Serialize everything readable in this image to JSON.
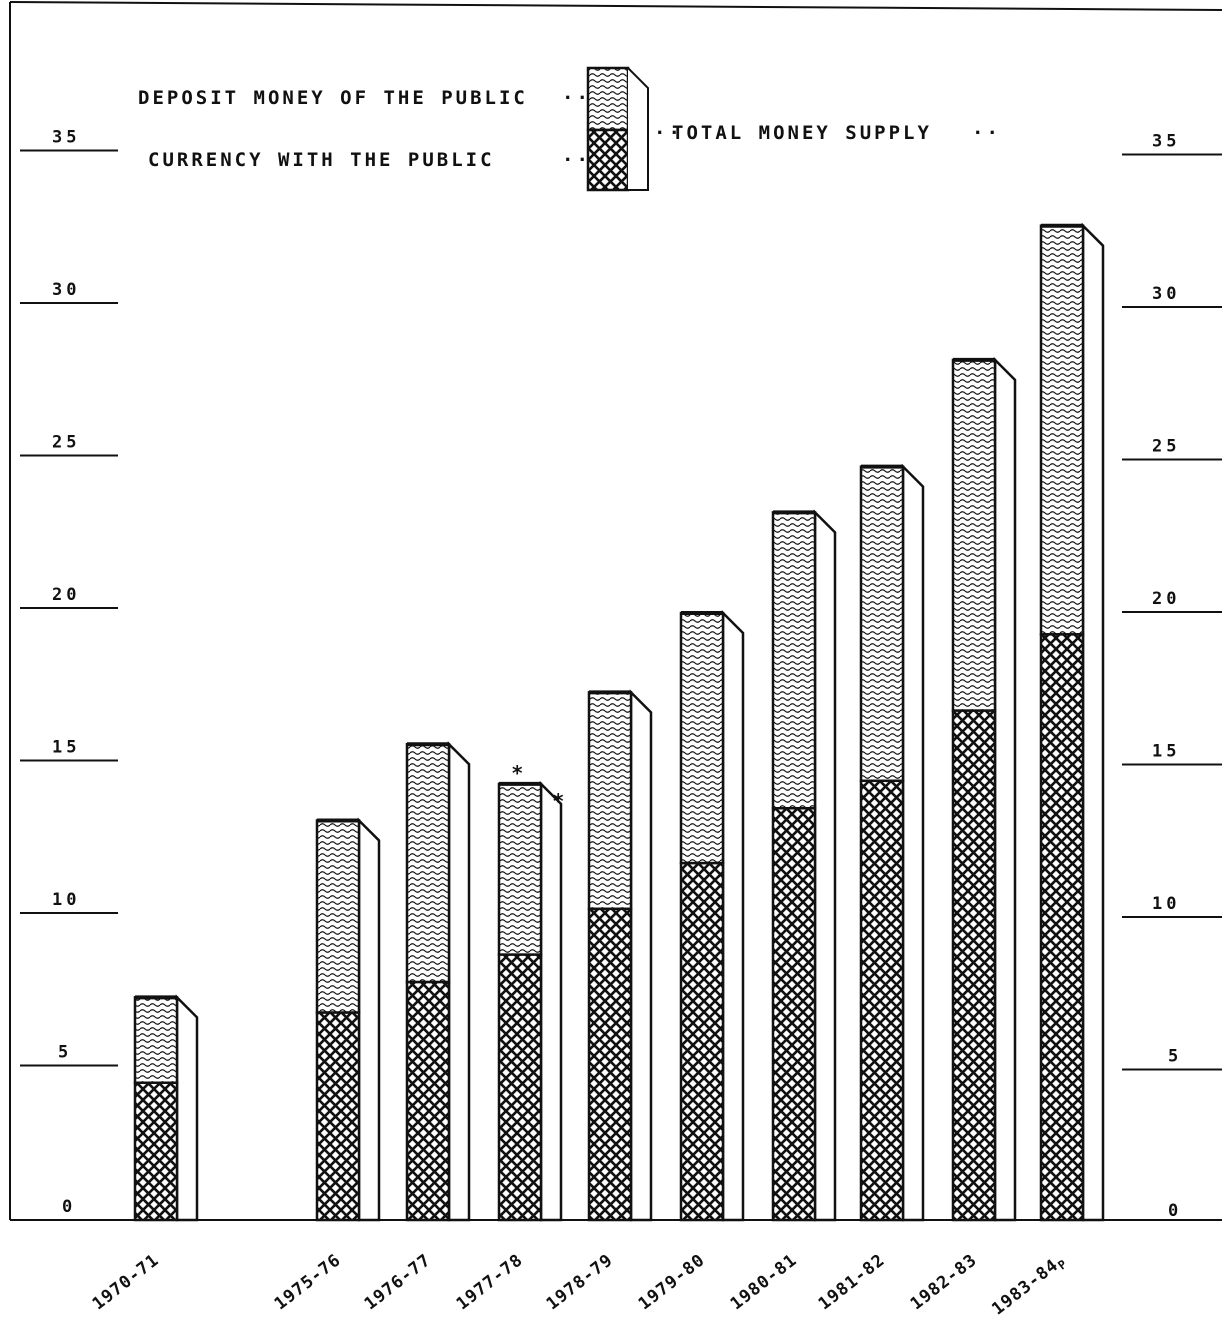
{
  "chart_data": {
    "type": "bar",
    "stacked": true,
    "title": "",
    "xlabel": "",
    "ylabel": "",
    "ylim": [
      0,
      35
    ],
    "yticks": [
      "0",
      "5",
      "10",
      "15",
      "20",
      "25",
      "30",
      "35"
    ],
    "grid": false,
    "legend_position": "top-left",
    "categories": [
      "1970-71",
      "1975-76",
      "1976-77",
      "1977-78",
      "1978-79",
      "1979-80",
      "1980-81",
      "1981-82",
      "1982-83",
      "1983-84"
    ],
    "category_labels": [
      "1970-71",
      "1975-76",
      "1976-77",
      "1977-78",
      "1978-79",
      "1979-80",
      "1980-81",
      "1981-82",
      "1982-83",
      "1983-84"
    ],
    "category_suffix": [
      "",
      "",
      "",
      "",
      "",
      "",
      "",
      "",
      "",
      "P"
    ],
    "annotations": [
      {
        "category": "1977-78",
        "text": "*"
      }
    ],
    "series": [
      {
        "name": "CURRENCY WITH THE PUBLIC",
        "values": [
          4.5,
          6.8,
          7.8,
          8.7,
          10.2,
          11.7,
          13.5,
          14.4,
          16.7,
          19.2
        ]
      },
      {
        "name": "DEPOSIT MONEY OF THE PUBLIC",
        "values": [
          2.8,
          6.3,
          7.8,
          5.6,
          7.1,
          8.2,
          9.7,
          10.3,
          11.5,
          13.4
        ]
      }
    ],
    "totals_label": "TOTAL MONEY SUPPLY",
    "legend": {
      "deposit": "DEPOSIT MONEY OF THE PUBLIC",
      "currency": "CURRENCY WITH THE PUBLIC",
      "total": "TOTAL MONEY SUPPLY"
    },
    "colors": {
      "ink": "#111111",
      "paper": "#ffffff"
    }
  }
}
